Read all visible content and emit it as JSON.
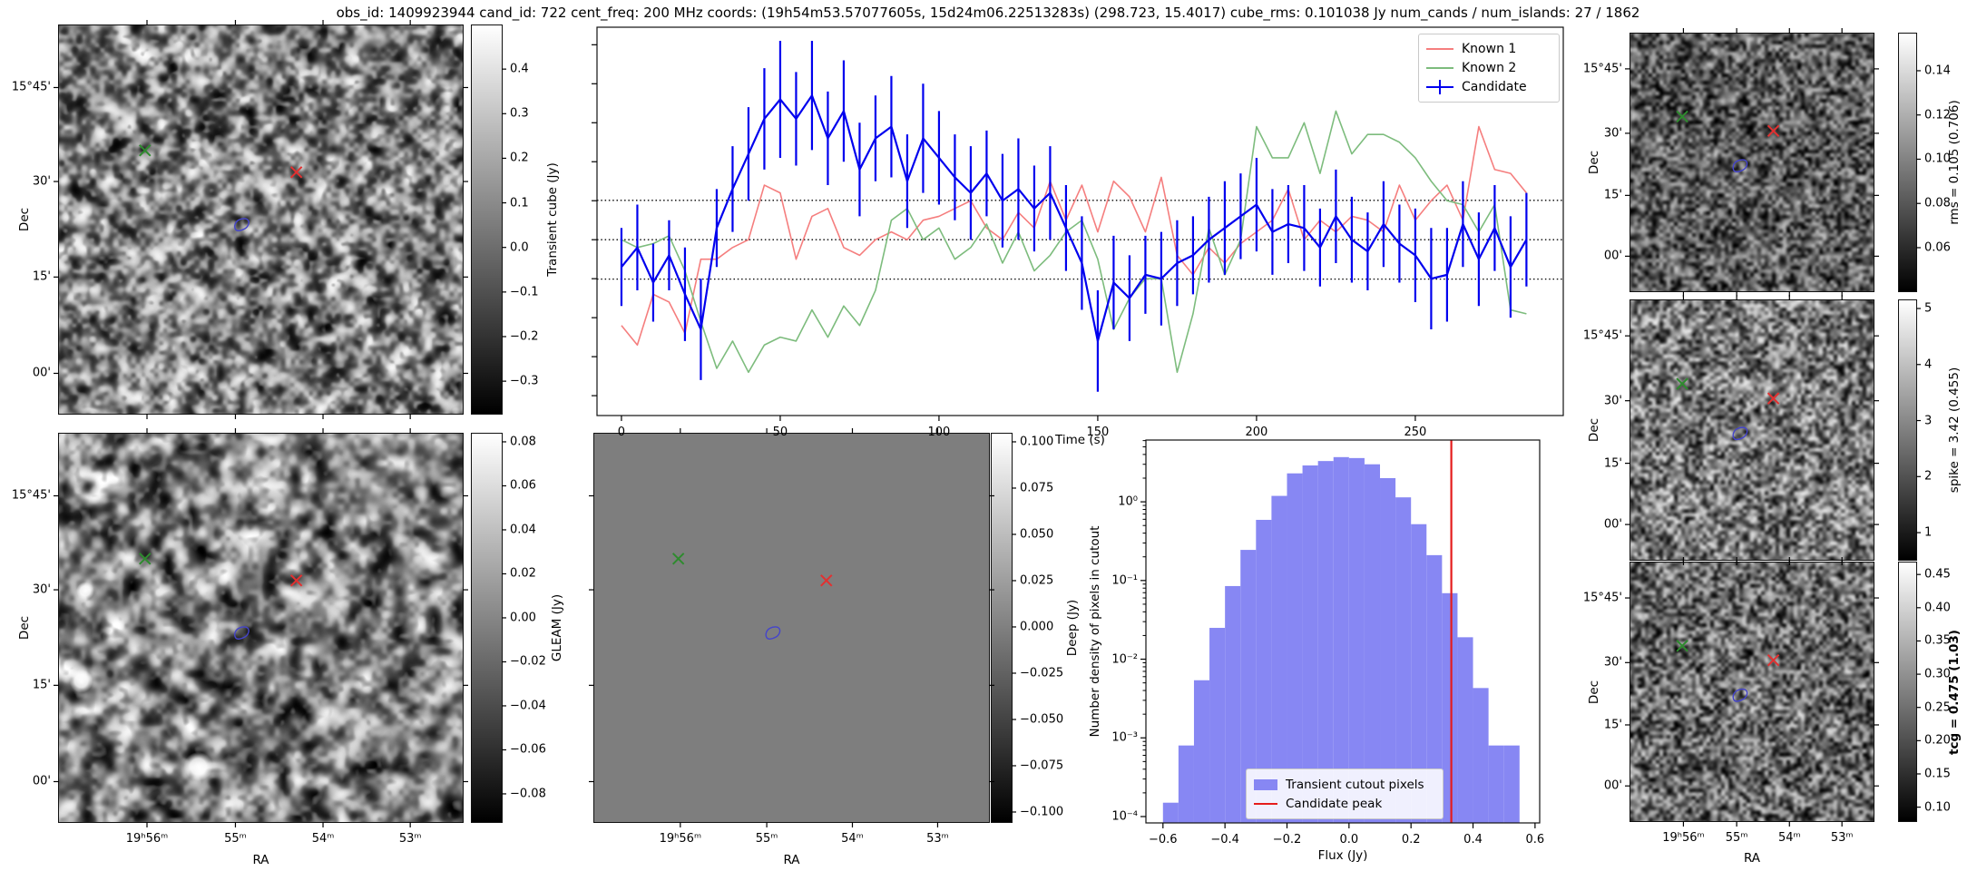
{
  "title": "obs_id: 1409923944 cand_id: 722 cent_freq: 200 MHz coords: (19h54m53.57077605s, 15d24m06.22513283s) (298.723, 15.4017) cube_rms: 0.101038 Jy num_cands / num_islands: 27 / 1862",
  "axes": {
    "dec_label": "Dec",
    "ra_label": "RA",
    "dec_ticks": [
      "15°45'",
      "30'",
      "15'",
      "00'"
    ],
    "ra_ticks": [
      "19ʰ56ᵐ",
      "55ᵐ",
      "54ᵐ",
      "53ᵐ"
    ]
  },
  "colorbars": {
    "transient": {
      "label": "Transient cube (Jy)",
      "vmin": -0.373,
      "vmax": 0.498,
      "ticks": [
        0.4,
        0.3,
        0.2,
        0.1,
        0.0,
        -0.1,
        -0.2,
        -0.3
      ],
      "decimals": 1
    },
    "gleam": {
      "label": "GLEAM (Jy)",
      "vmin": -0.0928,
      "vmax": 0.0837,
      "ticks": [
        0.08,
        0.06,
        0.04,
        0.02,
        0.0,
        -0.02,
        -0.04,
        -0.06,
        -0.08
      ],
      "decimals": 2
    },
    "deep": {
      "label": "Deep (Jy)",
      "vmin": -0.1054,
      "vmax": 0.1044,
      "ticks": [
        0.1,
        0.075,
        0.05,
        0.025,
        0.0,
        -0.025,
        -0.05,
        -0.075,
        -0.1
      ],
      "decimals": 3
    },
    "rms": {
      "label": "rms = 0.105 (0.706)",
      "vmin": 0.0403,
      "vmax": 0.1568,
      "ticks": [
        0.14,
        0.12,
        0.1,
        0.08,
        0.06
      ],
      "decimals": 2
    },
    "spike": {
      "label": "spike = 3.42 (0.455)",
      "vmin": 0.515,
      "vmax": 5.146,
      "ticks": [
        5,
        4,
        3,
        2,
        1
      ],
      "decimals": 0
    },
    "tcg": {
      "label": "tcg = 0.475 (1.03)",
      "bold": true,
      "vmin": 0.079,
      "vmax": 0.468,
      "ticks": [
        0.45,
        0.4,
        0.35,
        0.3,
        0.25,
        0.2,
        0.15,
        0.1
      ],
      "decimals": 2
    }
  },
  "markers": {
    "known1_color": "#2e8b2e",
    "known2_color": "#e33030",
    "candidate_contour_color": "#4444cc"
  },
  "chart_data": [
    {
      "type": "line",
      "title": "",
      "xlabel": "Time (s)",
      "ylabel": "",
      "xlim": [
        -7.7,
        296.6
      ],
      "ylim": [
        -0.451,
        0.545
      ],
      "xticks": [
        0,
        50,
        100,
        150,
        200,
        250
      ],
      "hlines": [
        0.101,
        0.0,
        -0.101
      ],
      "legend_position": "upper right",
      "x": [
        0,
        5,
        10,
        15,
        20,
        25,
        30,
        35,
        40,
        45,
        50,
        55,
        60,
        65,
        70,
        75,
        80,
        85,
        90,
        95,
        100,
        105,
        110,
        115,
        120,
        125,
        130,
        135,
        140,
        145,
        150,
        155,
        160,
        165,
        170,
        175,
        180,
        185,
        190,
        195,
        200,
        205,
        210,
        215,
        220,
        225,
        230,
        235,
        240,
        245,
        250,
        255,
        260,
        265,
        270,
        275,
        280,
        285
      ],
      "series": [
        {
          "name": "Known 1",
          "color": "#f57e7e",
          "values": [
            -0.22,
            -0.27,
            -0.14,
            -0.16,
            -0.24,
            -0.05,
            -0.05,
            -0.02,
            0.0,
            0.14,
            0.12,
            -0.05,
            0.06,
            0.08,
            -0.02,
            -0.04,
            0.0,
            0.02,
            0.0,
            0.05,
            0.06,
            0.08,
            0.1,
            0.03,
            0.0,
            0.07,
            0.03,
            0.15,
            0.05,
            0.14,
            0.02,
            0.15,
            0.11,
            0.02,
            0.16,
            -0.04,
            -0.09,
            -0.02,
            -0.06,
            -0.01,
            0.02,
            0.05,
            0.13,
            0.0,
            0.05,
            0.02,
            0.06,
            0.05,
            0.02,
            0.14,
            0.05,
            0.1,
            0.14,
            0.05,
            0.29,
            0.18,
            0.17,
            0.12
          ]
        },
        {
          "name": "Known 2",
          "color": "#7dbc7d",
          "values": [
            0.0,
            -0.02,
            -0.01,
            0.01,
            -0.08,
            -0.21,
            -0.33,
            -0.26,
            -0.34,
            -0.27,
            -0.25,
            -0.26,
            -0.18,
            -0.25,
            -0.17,
            -0.22,
            -0.13,
            0.05,
            0.08,
            0.0,
            0.03,
            -0.05,
            -0.02,
            0.04,
            -0.06,
            0.02,
            -0.08,
            -0.04,
            0.02,
            0.05,
            -0.05,
            -0.23,
            -0.15,
            -0.1,
            -0.1,
            -0.34,
            -0.19,
            0.03,
            -0.09,
            0.0,
            0.29,
            0.21,
            0.21,
            0.3,
            0.17,
            0.33,
            0.22,
            0.27,
            0.27,
            0.25,
            0.21,
            0.15,
            0.1,
            0.09,
            0.02,
            0.09,
            -0.18,
            -0.19
          ]
        },
        {
          "name": "Candidate",
          "color": "#0000ee",
          "values": [
            -0.07,
            -0.02,
            -0.11,
            -0.04,
            -0.14,
            -0.23,
            0.03,
            0.13,
            0.22,
            0.31,
            0.36,
            0.31,
            0.37,
            0.26,
            0.33,
            0.18,
            0.26,
            0.29,
            0.15,
            0.26,
            0.21,
            0.16,
            0.12,
            0.17,
            0.1,
            0.13,
            0.08,
            0.12,
            0.03,
            -0.06,
            -0.26,
            -0.11,
            -0.15,
            -0.09,
            -0.1,
            -0.06,
            -0.04,
            0.0,
            0.03,
            0.06,
            0.09,
            0.02,
            0.04,
            0.03,
            -0.02,
            0.06,
            0.0,
            -0.03,
            0.04,
            -0.01,
            -0.04,
            -0.1,
            -0.09,
            0.04,
            -0.05,
            0.03,
            -0.07,
            0.0
          ],
          "yerr": [
            0.1,
            0.11,
            0.1,
            0.09,
            0.12,
            0.13,
            0.1,
            0.11,
            0.12,
            0.13,
            0.15,
            0.12,
            0.14,
            0.12,
            0.13,
            0.12,
            0.11,
            0.13,
            0.12,
            0.14,
            0.12,
            0.11,
            0.12,
            0.11,
            0.12,
            0.13,
            0.11,
            0.12,
            0.11,
            0.12,
            0.13,
            0.12,
            0.11,
            0.1,
            0.12,
            0.11,
            0.1,
            0.11,
            0.12,
            0.11,
            0.12,
            0.11,
            0.1,
            0.11,
            0.1,
            0.12,
            0.11,
            0.1,
            0.11,
            0.1,
            0.12,
            0.13,
            0.12,
            0.11,
            0.12,
            0.11,
            0.13,
            0.12
          ]
        }
      ]
    },
    {
      "type": "bar",
      "subtype": "histogram",
      "xlabel": "Flux (Jy)",
      "ylabel": "Number density of pixels in cutout",
      "bar_color": "#8787f3",
      "line_color": "#e51c1c",
      "xlim": [
        -0.655,
        0.615
      ],
      "ylim": [
        8.3e-05,
        6.1
      ],
      "yscale": "log",
      "xticks": [
        -0.6,
        -0.4,
        -0.2,
        0.0,
        0.2,
        0.4,
        0.6
      ],
      "ytick_labels": [
        "10⁰",
        "10⁻¹",
        "10⁻²",
        "10⁻³",
        "10⁻⁴"
      ],
      "ytick_values": [
        1,
        0.1,
        0.01,
        0.001,
        0.0001
      ],
      "bin_start": -0.6,
      "bin_width": 0.05,
      "densities": [
        0.00015,
        0.0008,
        0.0054,
        0.025,
        0.085,
        0.245,
        0.59,
        1.19,
        2.3,
        2.9,
        3.3,
        3.7,
        3.6,
        3.0,
        2.0,
        1.14,
        0.52,
        0.21,
        0.069,
        0.019,
        0.0043,
        0.0008,
        0.0008
      ],
      "candidate_peak": 0.33,
      "legend": [
        "Transient cutout pixels",
        "Candidate peak"
      ]
    }
  ]
}
